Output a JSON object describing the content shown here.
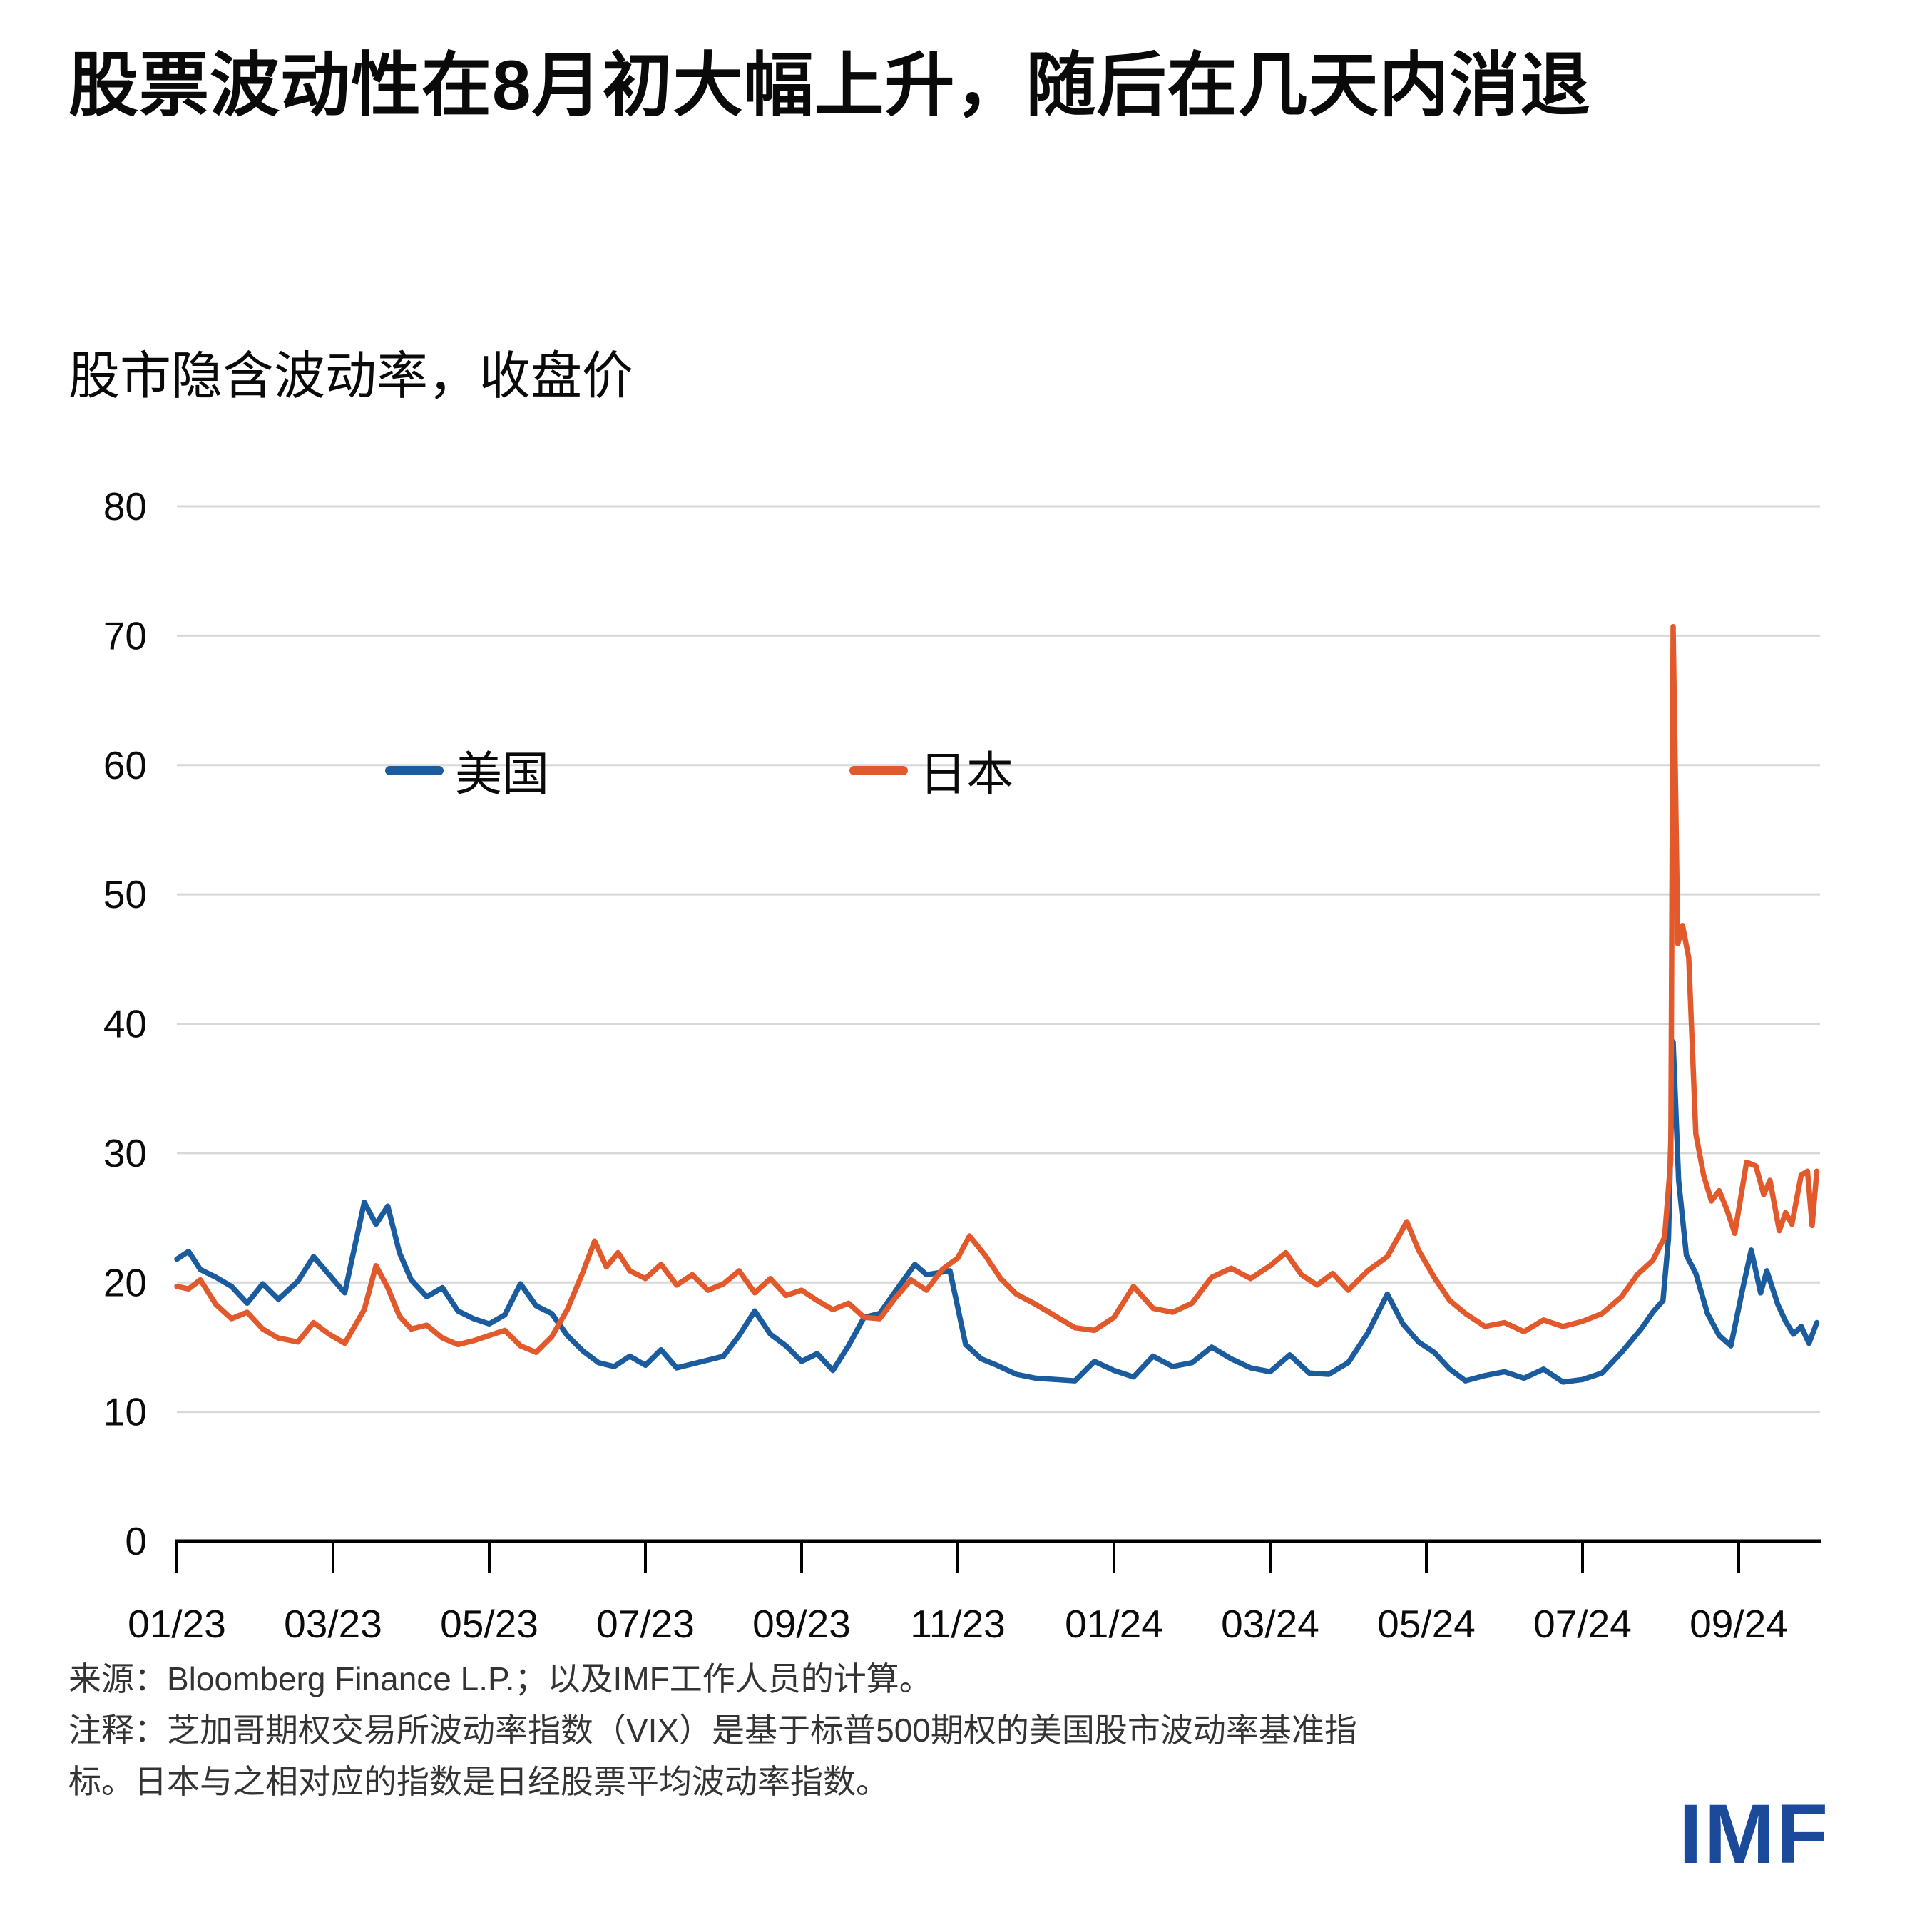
{
  "title": "股票波动性在8月初大幅上升，随后在几天内消退",
  "subtitle": "股市隐含波动率，收盘价",
  "legend": [
    {
      "label": "美国",
      "color": "#1b5c9e"
    },
    {
      "label": "日本",
      "color": "#e2592b"
    }
  ],
  "footer": {
    "source": "来源：Bloomberg Finance L.P.；以及IMF工作人员的计算。",
    "note1": "注释：芝加哥期权交易所波动率指数（VIX）是基于标普500期权的美国股市波动率基准指",
    "note2": "标。日本与之相对应的指数是日经股票平均波动率指数。"
  },
  "logo_text": "IMF",
  "colors": {
    "us_line": "#1b5c9e",
    "japan_line": "#e2592b",
    "gridline": "#d8d8d8",
    "axis": "#000000",
    "logo_blue": "#1b4a9b",
    "note_text": "#333333"
  },
  "chart_data": {
    "type": "line",
    "title": "股票波动性在8月初大幅上升，随后在几天内消退",
    "ylabel": "股市隐含波动率，收盘价",
    "ylim": [
      0,
      80
    ],
    "y_ticks": [
      0,
      10,
      20,
      30,
      40,
      50,
      60,
      70,
      80
    ],
    "grid": "horizontal",
    "legend_position": "inside-upper-left",
    "x_unit": "months since 2023-01",
    "xlim": [
      0,
      21.2
    ],
    "x_tick_positions": [
      0,
      2,
      4,
      6,
      8,
      10,
      12,
      14,
      16,
      18,
      20
    ],
    "x_tick_labels": [
      "01/23",
      "03/23",
      "05/23",
      "07/23",
      "09/23",
      "11/23",
      "01/24",
      "03/24",
      "05/24",
      "07/24",
      "09/24"
    ],
    "series": [
      {
        "name": "美国",
        "color": "#1b5c9e",
        "x": [
          0.0,
          0.15,
          0.3,
          0.5,
          0.7,
          0.9,
          1.1,
          1.3,
          1.55,
          1.75,
          1.95,
          2.15,
          2.4,
          2.55,
          2.7,
          2.85,
          3.0,
          3.2,
          3.4,
          3.6,
          3.8,
          4.0,
          4.2,
          4.4,
          4.6,
          4.8,
          5.0,
          5.2,
          5.4,
          5.6,
          5.8,
          6.0,
          6.2,
          6.4,
          6.6,
          6.8,
          7.0,
          7.2,
          7.4,
          7.6,
          7.8,
          8.0,
          8.2,
          8.4,
          8.6,
          8.8,
          9.0,
          9.2,
          9.45,
          9.6,
          9.9,
          10.1,
          10.3,
          10.5,
          10.75,
          11.0,
          11.25,
          11.5,
          11.75,
          12.0,
          12.25,
          12.5,
          12.75,
          13.0,
          13.25,
          13.5,
          13.75,
          14.0,
          14.25,
          14.5,
          14.75,
          15.0,
          15.25,
          15.5,
          15.7,
          15.9,
          16.1,
          16.3,
          16.5,
          16.75,
          17.0,
          17.25,
          17.5,
          17.75,
          18.0,
          18.25,
          18.5,
          18.75,
          18.9,
          19.03,
          19.1,
          19.16,
          19.23,
          19.33,
          19.45,
          19.6,
          19.75,
          19.9,
          20.05,
          20.16,
          20.28,
          20.36,
          20.5,
          20.6,
          20.7,
          20.8,
          20.9,
          21.0
        ],
        "values": [
          21.8,
          22.4,
          21.0,
          20.4,
          19.7,
          18.4,
          19.9,
          18.7,
          20.1,
          22.0,
          20.6,
          19.2,
          26.2,
          24.5,
          25.9,
          22.3,
          20.2,
          18.9,
          19.6,
          17.8,
          17.2,
          16.8,
          17.5,
          19.9,
          18.2,
          17.6,
          15.9,
          14.7,
          13.8,
          13.5,
          14.3,
          13.6,
          14.8,
          13.4,
          13.7,
          14.0,
          14.3,
          15.9,
          17.8,
          16.0,
          15.1,
          13.9,
          14.5,
          13.2,
          15.1,
          17.3,
          17.6,
          19.3,
          21.4,
          20.6,
          20.9,
          15.2,
          14.1,
          13.6,
          12.9,
          12.6,
          12.5,
          12.4,
          13.9,
          13.2,
          12.7,
          14.3,
          13.5,
          13.8,
          15.0,
          14.1,
          13.4,
          13.1,
          14.4,
          13.0,
          12.9,
          13.8,
          16.1,
          19.1,
          16.8,
          15.4,
          14.6,
          13.3,
          12.4,
          12.8,
          13.1,
          12.6,
          13.3,
          12.3,
          12.5,
          13.0,
          14.6,
          16.4,
          17.7,
          18.6,
          23.4,
          38.6,
          27.9,
          22.1,
          20.7,
          17.6,
          15.9,
          15.1,
          19.5,
          22.5,
          19.2,
          20.9,
          18.3,
          17.0,
          16.0,
          16.6,
          15.3,
          16.9
        ]
      },
      {
        "name": "日本",
        "color": "#e2592b",
        "x": [
          0.0,
          0.15,
          0.3,
          0.5,
          0.7,
          0.9,
          1.1,
          1.3,
          1.55,
          1.75,
          1.95,
          2.15,
          2.4,
          2.55,
          2.7,
          2.85,
          3.0,
          3.2,
          3.4,
          3.6,
          3.8,
          4.0,
          4.2,
          4.4,
          4.6,
          4.8,
          5.0,
          5.2,
          5.35,
          5.5,
          5.65,
          5.8,
          6.0,
          6.2,
          6.4,
          6.6,
          6.8,
          7.0,
          7.2,
          7.4,
          7.6,
          7.8,
          8.0,
          8.2,
          8.4,
          8.6,
          8.8,
          9.0,
          9.2,
          9.4,
          9.6,
          9.8,
          10.0,
          10.15,
          10.35,
          10.55,
          10.75,
          11.0,
          11.25,
          11.5,
          11.75,
          12.0,
          12.25,
          12.5,
          12.75,
          13.0,
          13.25,
          13.5,
          13.75,
          14.0,
          14.2,
          14.4,
          14.6,
          14.8,
          15.0,
          15.25,
          15.5,
          15.75,
          15.9,
          16.1,
          16.3,
          16.5,
          16.75,
          17.0,
          17.25,
          17.5,
          17.75,
          18.0,
          18.25,
          18.5,
          18.7,
          18.9,
          19.05,
          19.13,
          19.16,
          19.22,
          19.28,
          19.36,
          19.45,
          19.55,
          19.65,
          19.75,
          19.85,
          19.95,
          20.1,
          20.22,
          20.32,
          20.4,
          20.52,
          20.6,
          20.68,
          20.8,
          20.88,
          20.94,
          21.0
        ],
        "values": [
          19.7,
          19.5,
          20.2,
          18.3,
          17.2,
          17.7,
          16.4,
          15.7,
          15.4,
          16.9,
          16.0,
          15.3,
          17.9,
          21.3,
          19.6,
          17.4,
          16.4,
          16.7,
          15.7,
          15.2,
          15.5,
          15.9,
          16.3,
          15.1,
          14.6,
          15.8,
          17.9,
          20.8,
          23.2,
          21.2,
          22.3,
          20.9,
          20.3,
          21.4,
          19.8,
          20.6,
          19.4,
          19.9,
          20.9,
          19.2,
          20.3,
          19.0,
          19.4,
          18.6,
          17.9,
          18.4,
          17.3,
          17.2,
          18.8,
          20.2,
          19.4,
          21.0,
          21.9,
          23.6,
          22.1,
          20.3,
          19.1,
          18.3,
          17.4,
          16.5,
          16.3,
          17.3,
          19.7,
          18.0,
          17.7,
          18.4,
          20.4,
          21.1,
          20.3,
          21.3,
          22.3,
          20.6,
          19.8,
          20.7,
          19.4,
          20.9,
          22.0,
          24.7,
          22.5,
          20.4,
          18.6,
          17.6,
          16.6,
          16.9,
          16.2,
          17.1,
          16.6,
          17.0,
          17.6,
          18.9,
          20.6,
          21.7,
          23.5,
          29.5,
          70.7,
          46.2,
          47.6,
          45.1,
          31.5,
          28.3,
          26.3,
          27.1,
          25.6,
          23.8,
          29.3,
          29.0,
          26.8,
          27.9,
          24.0,
          25.4,
          24.5,
          28.3,
          28.6,
          24.4,
          28.6
        ]
      }
    ]
  }
}
